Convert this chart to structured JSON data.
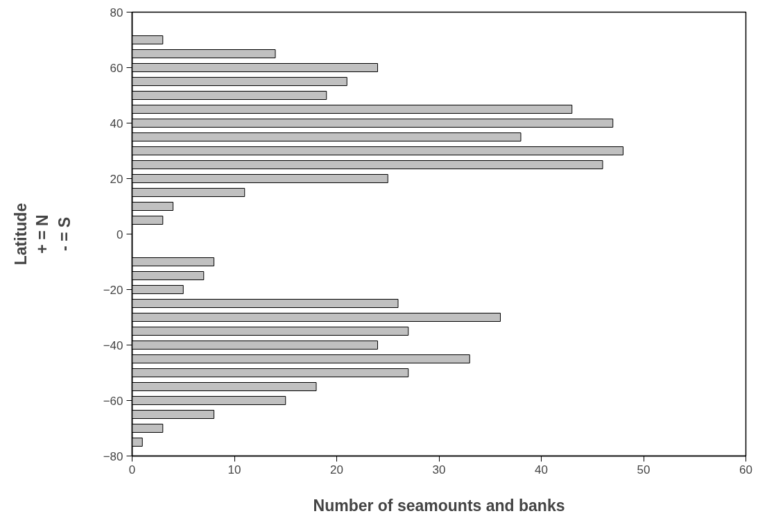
{
  "chart_data": {
    "type": "bar",
    "orientation": "horizontal",
    "xlabel": "Number of seamounts and banks",
    "ylabel": "Latitude\n+ = N\n- = S",
    "x": [
      70,
      65,
      60,
      55,
      50,
      45,
      40,
      35,
      30,
      25,
      20,
      15,
      10,
      5,
      -10,
      -15,
      -20,
      -25,
      -30,
      -35,
      -40,
      -45,
      -50,
      -55,
      -60,
      -65,
      -70,
      -75
    ],
    "values": [
      3,
      14,
      24,
      21,
      19,
      43,
      47,
      38,
      48,
      46,
      25,
      11,
      4,
      3,
      8,
      7,
      5,
      26,
      36,
      27,
      24,
      33,
      27,
      18,
      15,
      8,
      3,
      1
    ],
    "color": "#c0c0c0",
    "xlim": [
      0,
      60
    ],
    "xticks": [
      0,
      10,
      20,
      30,
      40,
      50,
      60
    ],
    "ylim": [
      -80,
      80
    ],
    "yticks": [
      -80,
      -60,
      -40,
      -20,
      0,
      20,
      40,
      60,
      80
    ],
    "grid": false
  }
}
